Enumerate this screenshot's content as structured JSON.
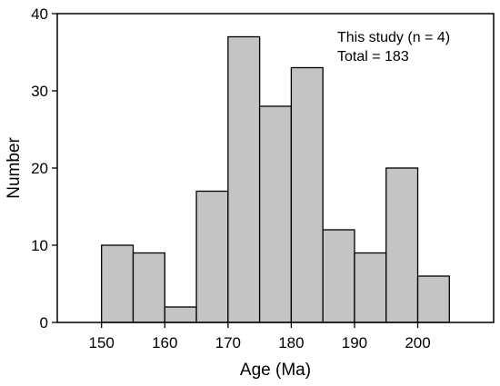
{
  "chart_data": {
    "type": "bar",
    "title": "",
    "xlabel": "Age (Ma)",
    "ylabel": "Number",
    "bin_width": 5,
    "bin_starts": [
      150,
      155,
      160,
      165,
      170,
      175,
      180,
      185,
      190,
      195,
      200
    ],
    "values": [
      10,
      9,
      2,
      17,
      37,
      28,
      33,
      12,
      9,
      20,
      6
    ],
    "xlim": [
      143,
      212
    ],
    "ylim": [
      0,
      40
    ],
    "xticks": [
      150,
      160,
      170,
      180,
      190,
      200
    ],
    "yticks": [
      0,
      10,
      20,
      30,
      40
    ],
    "bar_color": "#c4c4c4",
    "grid": false,
    "annotations": [
      "This study (n = 4)",
      "Total = 183"
    ],
    "annotation_position": "top-right"
  }
}
